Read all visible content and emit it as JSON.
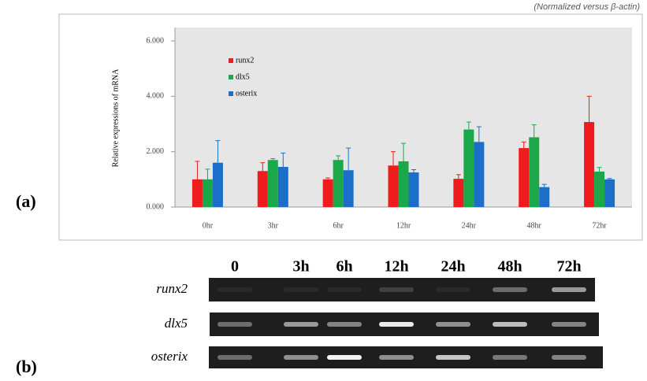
{
  "chart_data": {
    "type": "bar",
    "note": "(Normalized versus β-actin)",
    "ylabel": "Relative expressions of mRNA",
    "categories": [
      "0hr",
      "3hr",
      "6hr",
      "12hr",
      "24hr",
      "48hr",
      "72hr"
    ],
    "series": [
      {
        "name": "runx2",
        "color": "#ee1c1c",
        "values": [
          1.0,
          1.3,
          1.0,
          1.5,
          1.02,
          2.13,
          3.07
        ],
        "errors": [
          0.65,
          0.3,
          0.05,
          0.5,
          0.15,
          0.22,
          0.93
        ]
      },
      {
        "name": "dlx5",
        "color": "#1aa84a",
        "values": [
          1.0,
          1.7,
          1.7,
          1.65,
          2.8,
          2.52,
          1.28
        ],
        "errors": [
          0.37,
          0.05,
          0.15,
          0.65,
          0.27,
          0.45,
          0.15
        ]
      },
      {
        "name": "osterix",
        "color": "#1c6fc8",
        "values": [
          1.6,
          1.45,
          1.33,
          1.25,
          2.35,
          0.72,
          1.0
        ],
        "errors": [
          0.8,
          0.5,
          0.8,
          0.1,
          0.55,
          0.1,
          0.03
        ]
      }
    ],
    "ylim": [
      0,
      6
    ],
    "yticks": [
      {
        "value": 0,
        "label": "0.000"
      },
      {
        "value": 2,
        "label": "2.000"
      },
      {
        "value": 4,
        "label": "4.000"
      },
      {
        "value": 6,
        "label": "6.000"
      }
    ],
    "legend": "upper left"
  },
  "panel_labels": [
    "(a)",
    "(b)"
  ],
  "gel": {
    "lanes": [
      "0",
      "3h",
      "6h",
      "12h",
      "24h",
      "48h",
      "72h"
    ],
    "rows": [
      "runx2",
      "dlx5",
      "osterix"
    ]
  }
}
